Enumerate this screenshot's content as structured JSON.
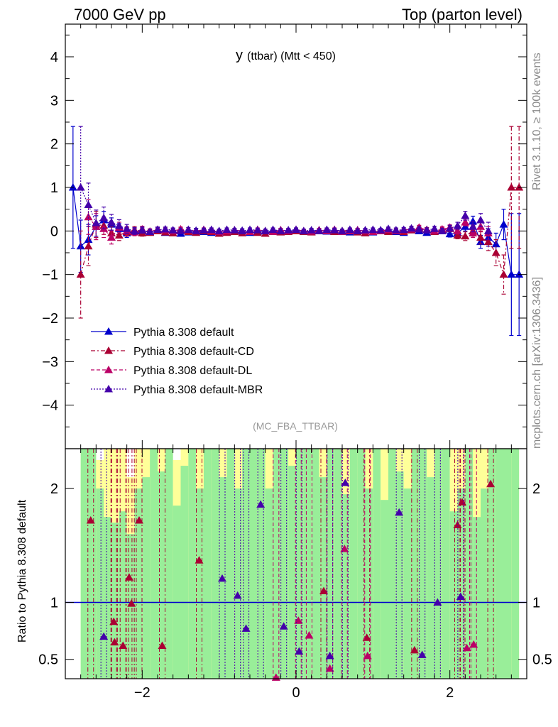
{
  "header": {
    "left": "7000 GeV pp",
    "right": "Top (parton level)"
  },
  "side_labels": {
    "rivet": "Rivet 3.1.10, ≥ 100k events",
    "mcplots": "mcplots.cern.ch [arXiv:1306.3436]"
  },
  "colors": {
    "default": "#0000cc",
    "cd": "#aa0033",
    "dl": "#bb0066",
    "mbr": "#4400aa",
    "band_green": "#99ee99",
    "band_yellow": "#ffff99"
  },
  "chart_data": [
    {
      "type": "scatter",
      "title": "y (ttbar) (Mtt < 450)",
      "title_main": "y",
      "title_sub": "(ttbar) (Mtt < 450)",
      "analysis": "(MC_FBA_TTBAR)",
      "xlim": [
        -3,
        3
      ],
      "ylim": [
        -5,
        4.75
      ],
      "xticks": [
        -2,
        0,
        2
      ],
      "yticks": [
        -4,
        -3,
        -2,
        -1,
        0,
        1,
        2,
        3,
        4
      ],
      "legend_position": "lower-left",
      "series": [
        {
          "name": "Pythia 8.308 default",
          "line": "solid",
          "x": [
            -2.9,
            -2.8,
            -2.7,
            -2.6,
            -2.5,
            -2.4,
            -2.3,
            -2.2,
            -2.1,
            -2.0,
            -1.9,
            -1.8,
            -1.7,
            -1.6,
            -1.5,
            -1.4,
            -1.3,
            -1.2,
            -1.1,
            -1.0,
            -0.9,
            -0.8,
            -0.7,
            -0.6,
            -0.5,
            -0.4,
            -0.3,
            -0.2,
            -0.1,
            0.0,
            0.1,
            0.2,
            0.3,
            0.4,
            0.5,
            0.6,
            0.7,
            0.8,
            0.9,
            1.0,
            1.1,
            1.2,
            1.3,
            1.4,
            1.5,
            1.6,
            1.7,
            1.8,
            1.9,
            2.0,
            2.1,
            2.2,
            2.3,
            2.4,
            2.5,
            2.6,
            2.7,
            2.8,
            2.9
          ],
          "y": [
            1.0,
            -0.35,
            -0.2,
            0.1,
            0.25,
            0.15,
            0.05,
            -0.05,
            -0.02,
            0.0,
            -0.03,
            0.02,
            -0.04,
            0.0,
            -0.06,
            -0.03,
            0.01,
            -0.02,
            -0.04,
            0.0,
            -0.03,
            -0.02,
            0.01,
            -0.04,
            -0.02,
            0.0,
            -0.01,
            0.02,
            0.0,
            0.01,
            -0.02,
            0.0,
            0.02,
            -0.01,
            0.02,
            0.0,
            -0.03,
            0.02,
            0.0,
            -0.03,
            0.01,
            0.02,
            -0.02,
            -0.04,
            0.02,
            0.0,
            -0.04,
            -0.02,
            0.0,
            -0.07,
            -0.05,
            0.1,
            0.22,
            -0.25,
            -0.15,
            -0.3,
            0.15,
            -1.0,
            -1.0
          ],
          "err": [
            1.4,
            0.6,
            0.35,
            0.25,
            0.2,
            0.15,
            0.12,
            0.1,
            0.08,
            0.07,
            0.06,
            0.06,
            0.05,
            0.05,
            0.05,
            0.05,
            0.05,
            0.04,
            0.04,
            0.04,
            0.04,
            0.04,
            0.04,
            0.04,
            0.04,
            0.04,
            0.04,
            0.04,
            0.04,
            0.04,
            0.04,
            0.04,
            0.04,
            0.04,
            0.04,
            0.04,
            0.04,
            0.04,
            0.04,
            0.04,
            0.04,
            0.04,
            0.05,
            0.05,
            0.05,
            0.05,
            0.05,
            0.06,
            0.06,
            0.07,
            0.08,
            0.1,
            0.12,
            0.15,
            0.2,
            0.25,
            0.35,
            1.4,
            1.4
          ],
          "ratio": []
        },
        {
          "name": "Pythia 8.308 default-CD",
          "line": "dashdot",
          "x": [
            -2.8,
            -2.7,
            -2.6,
            -2.5,
            -2.4,
            -2.3,
            -2.2,
            -2.1,
            -2.0,
            -1.9,
            -1.8,
            -1.7,
            -1.6,
            -1.5,
            -1.4,
            -1.3,
            -1.2,
            -1.1,
            -1.0,
            -0.9,
            -0.8,
            -0.7,
            -0.6,
            -0.5,
            -0.4,
            -0.3,
            -0.2,
            -0.1,
            0.0,
            0.1,
            0.2,
            0.3,
            0.4,
            0.5,
            0.6,
            0.7,
            0.8,
            0.9,
            1.0,
            1.1,
            1.2,
            1.3,
            1.4,
            1.5,
            1.6,
            1.7,
            1.8,
            1.9,
            2.0,
            2.1,
            2.2,
            2.3,
            2.4,
            2.5,
            2.6,
            2.7,
            2.8,
            2.9
          ],
          "y": [
            -1.0,
            -0.35,
            0.15,
            0.12,
            -0.05,
            -0.1,
            -0.02,
            0.02,
            -0.05,
            -0.04,
            0.0,
            -0.03,
            -0.05,
            0.02,
            -0.02,
            -0.04,
            0.0,
            -0.02,
            -0.06,
            -0.04,
            -0.02,
            -0.05,
            -0.02,
            -0.04,
            -0.06,
            0.0,
            -0.03,
            -0.02,
            0.0,
            -0.02,
            -0.03,
            0.0,
            0.01,
            -0.02,
            0.0,
            0.02,
            -0.03,
            -0.05,
            -0.02,
            0.0,
            -0.02,
            0.0,
            -0.02,
            0.02,
            0.05,
            0.03,
            -0.02,
            0.02,
            0.05,
            -0.1,
            -0.12,
            0.0,
            -0.15,
            -0.25,
            -0.5,
            -1.0,
            1.0,
            1.0
          ],
          "err": [
            1.0,
            0.45,
            0.3,
            0.2,
            0.15,
            0.12,
            0.1,
            0.08,
            0.07,
            0.06,
            0.06,
            0.05,
            0.05,
            0.05,
            0.05,
            0.05,
            0.04,
            0.04,
            0.04,
            0.04,
            0.04,
            0.04,
            0.04,
            0.04,
            0.04,
            0.04,
            0.04,
            0.04,
            0.04,
            0.04,
            0.04,
            0.04,
            0.04,
            0.04,
            0.04,
            0.04,
            0.04,
            0.04,
            0.04,
            0.04,
            0.04,
            0.05,
            0.05,
            0.05,
            0.05,
            0.05,
            0.06,
            0.06,
            0.07,
            0.08,
            0.1,
            0.12,
            0.15,
            0.2,
            0.3,
            0.45,
            1.4,
            1.4
          ],
          "ratio": [
            {
              "x": -2.67,
              "y": 1.72
            },
            {
              "x": -2.36,
              "y": 0.65
            },
            {
              "x": -2.37,
              "y": 0.83
            },
            {
              "x": -2.25,
              "y": 0.62
            },
            {
              "x": -2.17,
              "y": 1.22
            },
            {
              "x": -2.14,
              "y": 0.99
            },
            {
              "x": -2.04,
              "y": 1.72
            },
            {
              "x": -1.74,
              "y": 0.62
            },
            {
              "x": -1.26,
              "y": 1.37
            },
            {
              "x": 0.36,
              "y": 1.1
            },
            {
              "x": 0.92,
              "y": 0.69
            },
            {
              "x": 1.54,
              "y": 0.58
            },
            {
              "x": 2.1,
              "y": 1.68
            },
            {
              "x": 2.16,
              "y": 1.88
            },
            {
              "x": 2.53,
              "y": 2.04
            }
          ]
        },
        {
          "name": "Pythia 8.308 default-DL",
          "line": "dashed",
          "x": [
            -2.7,
            -2.6,
            -2.5,
            -2.4,
            -2.3,
            -2.2,
            -2.1,
            -2.0,
            -1.9,
            -1.8,
            -1.7,
            -1.6,
            -1.5,
            -1.4,
            -1.3,
            -1.2,
            -1.1,
            -1.0,
            -0.9,
            -0.8,
            -0.7,
            -0.6,
            -0.5,
            -0.4,
            -0.3,
            -0.2,
            -0.1,
            0.0,
            0.1,
            0.2,
            0.3,
            0.4,
            0.5,
            0.6,
            0.7,
            0.8,
            0.9,
            1.0,
            1.1,
            1.2,
            1.3,
            1.4,
            1.5,
            1.6,
            1.7,
            1.8,
            1.9,
            2.0,
            2.1,
            2.2,
            2.3,
            2.4,
            2.5
          ],
          "y": [
            0.32,
            0.1,
            0.05,
            -0.15,
            0.08,
            0.0,
            -0.03,
            0.04,
            -0.01,
            0.03,
            0.02,
            0.0,
            0.04,
            0.02,
            0.0,
            0.03,
            0.01,
            -0.02,
            0.0,
            0.02,
            0.0,
            -0.02,
            0.03,
            0.0,
            -0.02,
            0.02,
            0.0,
            0.03,
            0.0,
            -0.01,
            0.02,
            0.0,
            0.03,
            -0.02,
            0.0,
            0.02,
            0.0,
            -0.02,
            0.0,
            0.03,
            0.0,
            0.02,
            0.04,
            0.08,
            0.02,
            0.0,
            0.04,
            0.08,
            0.0,
            0.2,
            -0.05,
            0.1,
            -0.05
          ],
          "err": [
            0.4,
            0.3,
            0.2,
            0.15,
            0.12,
            0.1,
            0.08,
            0.07,
            0.06,
            0.06,
            0.05,
            0.05,
            0.05,
            0.05,
            0.05,
            0.04,
            0.04,
            0.04,
            0.04,
            0.04,
            0.04,
            0.04,
            0.04,
            0.04,
            0.04,
            0.04,
            0.04,
            0.04,
            0.04,
            0.04,
            0.04,
            0.04,
            0.04,
            0.04,
            0.04,
            0.04,
            0.04,
            0.04,
            0.04,
            0.04,
            0.04,
            0.04,
            0.05,
            0.05,
            0.05,
            0.05,
            0.06,
            0.06,
            0.07,
            0.08,
            0.1,
            0.12,
            0.15
          ],
          "ratio": [
            {
              "x": -0.26,
              "y": 0.34
            },
            {
              "x": 0.03,
              "y": 0.84
            },
            {
              "x": 0.17,
              "y": 0.71
            },
            {
              "x": 0.44,
              "y": 0.42
            },
            {
              "x": 0.63,
              "y": 1.47
            },
            {
              "x": 0.93,
              "y": 0.53
            },
            {
              "x": 2.22,
              "y": 0.6
            },
            {
              "x": 2.31,
              "y": 0.63
            }
          ]
        },
        {
          "name": "Pythia 8.308 default-MBR",
          "line": "dotted",
          "x": [
            -2.8,
            -2.7,
            -2.6,
            -2.5,
            -2.4,
            -2.3,
            -2.2,
            -2.1,
            -2.0,
            -1.9,
            -1.8,
            -1.7,
            -1.6,
            -1.5,
            -1.4,
            -1.3,
            -1.2,
            -1.1,
            -1.0,
            -0.9,
            -0.8,
            -0.7,
            -0.6,
            -0.5,
            -0.4,
            -0.3,
            -0.2,
            -0.1,
            0.0,
            0.1,
            0.2,
            0.3,
            0.4,
            0.5,
            0.6,
            0.7,
            0.8,
            0.9,
            1.0,
            1.1,
            1.2,
            1.3,
            1.4,
            1.5,
            1.6,
            1.7,
            1.8,
            1.9,
            2.0,
            2.1,
            2.2,
            2.3,
            2.4,
            2.5
          ],
          "y": [
            1.0,
            0.6,
            0.18,
            0.3,
            0.2,
            0.12,
            0.05,
            0.0,
            0.02,
            -0.02,
            0.03,
            0.04,
            0.02,
            0.0,
            0.03,
            0.0,
            0.02,
            0.03,
            0.0,
            0.03,
            0.02,
            0.0,
            0.03,
            0.02,
            0.0,
            0.03,
            0.0,
            0.02,
            0.03,
            0.0,
            0.02,
            0.0,
            0.03,
            0.02,
            0.0,
            0.03,
            0.0,
            0.02,
            0.03,
            0.02,
            0.05,
            0.02,
            0.03,
            0.06,
            0.04,
            0.02,
            0.05,
            0.0,
            0.06,
            0.12,
            0.35,
            0.1,
            0.25,
            0.0
          ],
          "err": [
            1.4,
            0.5,
            0.3,
            0.25,
            0.18,
            0.14,
            0.1,
            0.08,
            0.07,
            0.06,
            0.06,
            0.05,
            0.05,
            0.05,
            0.05,
            0.05,
            0.04,
            0.04,
            0.04,
            0.04,
            0.04,
            0.04,
            0.04,
            0.04,
            0.04,
            0.04,
            0.04,
            0.04,
            0.04,
            0.04,
            0.04,
            0.04,
            0.04,
            0.04,
            0.04,
            0.04,
            0.04,
            0.04,
            0.04,
            0.04,
            0.04,
            0.05,
            0.05,
            0.05,
            0.05,
            0.05,
            0.06,
            0.06,
            0.07,
            0.08,
            0.1,
            0.12,
            0.15,
            0.2
          ],
          "ratio": [
            {
              "x": -2.5,
              "y": 0.7
            },
            {
              "x": -0.96,
              "y": 1.21
            },
            {
              "x": -0.76,
              "y": 1.06
            },
            {
              "x": -0.65,
              "y": 0.77
            },
            {
              "x": -0.46,
              "y": 1.86
            },
            {
              "x": -0.16,
              "y": 0.79
            },
            {
              "x": 0.04,
              "y": 0.57
            },
            {
              "x": 0.44,
              "y": 0.53
            },
            {
              "x": 0.64,
              "y": 2.05
            },
            {
              "x": 1.34,
              "y": 1.79
            },
            {
              "x": 1.64,
              "y": 0.54
            },
            {
              "x": 1.84,
              "y": 1.0
            },
            {
              "x": 2.14,
              "y": 1.05
            }
          ]
        }
      ]
    },
    {
      "type": "line",
      "ylabel": "Ratio to Pythia 8.308 default",
      "xlim": [
        -3,
        3
      ],
      "ylim": [
        0.33,
        2.35
      ],
      "xticks": [
        -2,
        0,
        2
      ],
      "yticks": [
        0.5,
        1,
        2
      ],
      "ytick_labels": [
        "0.5",
        "1",
        "2"
      ],
      "reference_line": 1,
      "bands": {
        "x_edges": [
          -2.8,
          -2.7,
          -2.6,
          -2.5,
          -2.4,
          -2.3,
          -2.2,
          -2.1,
          -2.0,
          -1.9,
          -1.8,
          -1.7,
          -1.6,
          -1.5,
          -1.4,
          -1.3,
          -1.2,
          -1.1,
          -1.0,
          -0.9,
          -0.8,
          -0.7,
          -0.6,
          -0.5,
          -0.4,
          -0.3,
          -0.2,
          -0.1,
          0.0,
          0.1,
          0.2,
          0.3,
          0.4,
          0.5,
          0.6,
          0.7,
          0.8,
          0.9,
          1.0,
          1.1,
          1.2,
          1.3,
          1.4,
          1.5,
          1.6,
          1.7,
          1.8,
          1.9,
          2.0,
          2.1,
          2.2,
          2.3,
          2.4,
          2.5,
          2.6,
          2.7,
          2.8,
          2.9
        ],
        "green_upper": [
          2.35,
          2.35,
          2.0,
          1.75,
          1.7,
          1.8,
          1.6,
          2.0,
          2.1,
          2.35,
          2.15,
          2.35,
          1.85,
          2.2,
          2.35,
          2.0,
          2.35,
          2.35,
          2.1,
          2.35,
          2.0,
          2.35,
          2.35,
          2.35,
          2.0,
          2.35,
          2.35,
          2.2,
          2.35,
          2.35,
          2.35,
          2.1,
          2.35,
          2.35,
          1.95,
          2.35,
          2.35,
          2.0,
          2.35,
          1.9,
          2.35,
          2.15,
          2.0,
          2.35,
          2.35,
          2.1,
          2.35,
          2.35,
          1.8,
          2.0,
          2.35,
          1.75,
          2.0,
          2.35,
          2.35,
          2.35,
          2.35
        ],
        "yellow_upper": [
          2.35,
          2.35,
          2.25,
          2.35,
          2.35,
          2.35,
          2.1,
          2.35,
          2.35,
          2.35,
          2.35,
          2.35,
          2.25,
          2.35,
          2.35,
          2.35,
          2.35,
          2.35,
          2.35,
          2.35,
          2.35,
          2.35,
          2.35,
          2.35,
          2.35,
          2.35,
          2.35,
          2.35,
          2.35,
          2.35,
          2.35,
          2.35,
          2.35,
          2.35,
          2.35,
          2.35,
          2.35,
          2.35,
          2.35,
          2.35,
          2.35,
          2.35,
          2.35,
          2.35,
          2.35,
          2.35,
          2.35,
          2.35,
          2.35,
          2.35,
          2.35,
          2.35,
          2.35,
          2.35,
          2.35,
          2.35,
          2.35
        ]
      }
    }
  ]
}
